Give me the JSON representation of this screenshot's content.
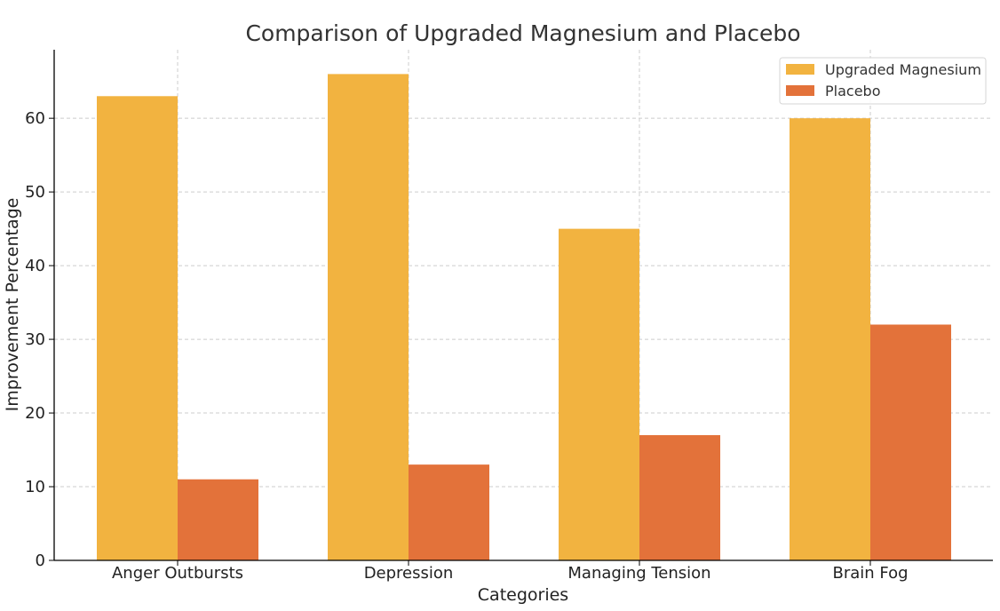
{
  "chart_data": {
    "type": "bar",
    "title": "Comparison of Upgraded Magnesium and Placebo",
    "xlabel": "Categories",
    "ylabel": "Improvement Percentage",
    "categories": [
      "Anger Outbursts",
      "Depression",
      "Managing Tension",
      "Brain Fog"
    ],
    "series": [
      {
        "name": "Upgraded Magnesium",
        "values": [
          63,
          66,
          45,
          60
        ],
        "color": "#F2B340"
      },
      {
        "name": "Placebo",
        "values": [
          11,
          13,
          17,
          32
        ],
        "color": "#E3723A"
      }
    ],
    "ylim": [
      0,
      69.3
    ],
    "yticks": [
      0,
      10,
      20,
      30,
      40,
      50,
      60
    ],
    "grid": true,
    "legend_position": "top-right"
  }
}
